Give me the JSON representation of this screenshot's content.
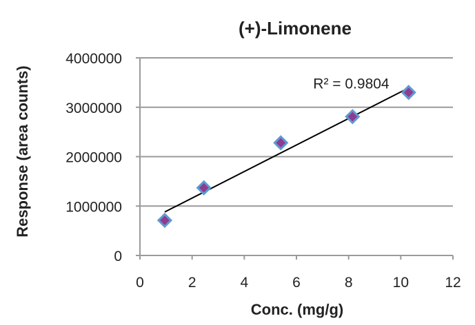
{
  "chart_data": {
    "type": "scatter",
    "title": "(+)-Limonene",
    "xlabel": "Conc. (mg/g)",
    "ylabel": "Response (area counts)",
    "xlim": [
      0,
      12
    ],
    "ylim": [
      0,
      4000000
    ],
    "x_ticks": [
      "0",
      "2",
      "4",
      "6",
      "8",
      "10",
      "12"
    ],
    "y_ticks": [
      "0",
      "1000000",
      "2000000",
      "3000000",
      "4000000"
    ],
    "grid": {
      "horizontal": true,
      "vertical": false
    },
    "series": [
      {
        "x": [
          0.95,
          2.45,
          5.4,
          8.15,
          10.3
        ],
        "y": [
          710000,
          1370000,
          2280000,
          2810000,
          3300000
        ],
        "marker": "diamond",
        "marker_fill": "#8e3c8f",
        "marker_edge": "#5b9bd5"
      }
    ],
    "trendline": {
      "type": "linear",
      "x_range": [
        0.95,
        10.3
      ],
      "y_range": [
        880000,
        3390000
      ],
      "color": "#000000"
    },
    "annotations": [
      {
        "text": "R² = 0.9804",
        "x": 8.1,
        "y": 3480000
      }
    ]
  }
}
